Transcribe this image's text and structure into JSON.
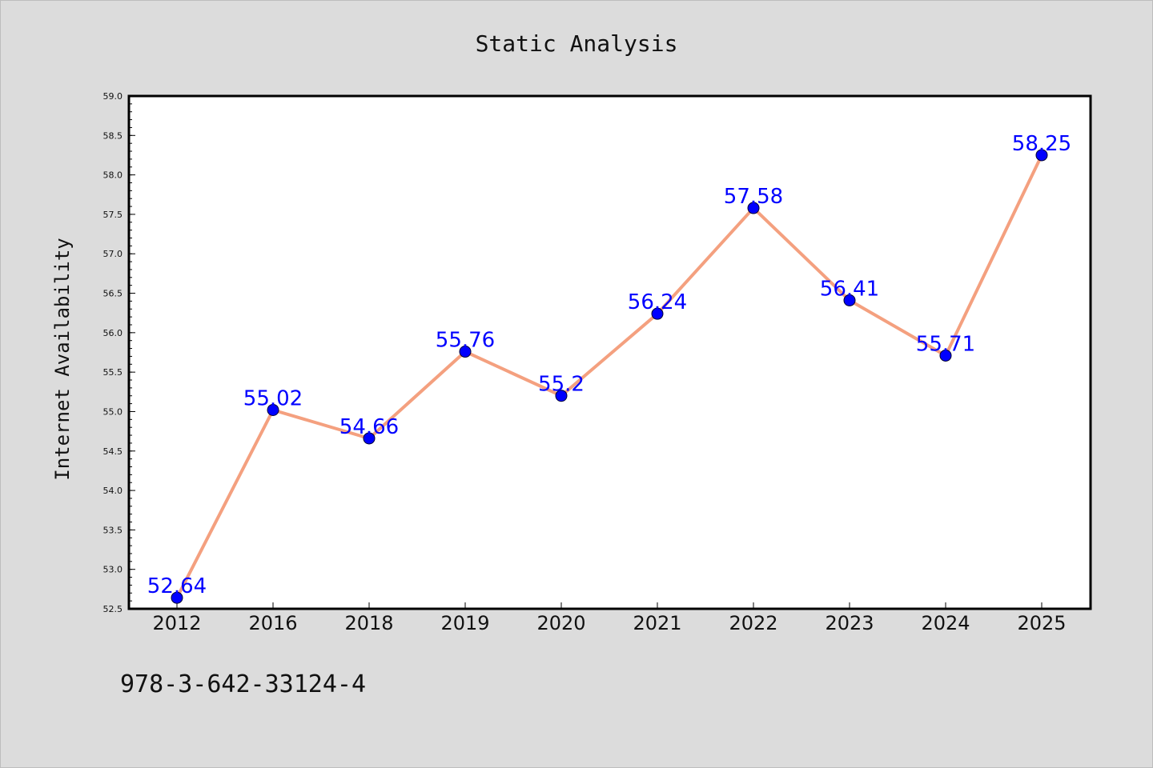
{
  "chart_data": {
    "type": "line",
    "title": "Static Analysis",
    "xlabel": "",
    "ylabel": "Internet Availability",
    "categories": [
      "2012",
      "2016",
      "2018",
      "2019",
      "2020",
      "2021",
      "2022",
      "2023",
      "2024",
      "2025"
    ],
    "series": [
      {
        "values": [
          52.64,
          55.02,
          54.66,
          55.76,
          55.2,
          56.24,
          57.58,
          56.41,
          55.71,
          58.25
        ],
        "labels": [
          "52.64",
          "55.02",
          "54.66",
          "55.76",
          "55.2",
          "56.24",
          "57.58",
          "56.41",
          "55.71",
          "58.25"
        ]
      }
    ],
    "ylim": [
      52.5,
      59.0
    ],
    "yticks": [
      "52.5",
      "53.0",
      "53.5",
      "54.0",
      "54.5",
      "55.0",
      "55.5",
      "56.0",
      "56.5",
      "57.0",
      "57.5",
      "58.0",
      "58.5",
      "59.0"
    ],
    "grid": false,
    "colors": {
      "line": "#f4a07f",
      "marker": "#0000ff",
      "data_label": "#0000ff",
      "plot_background": "#ffffff",
      "figure_background": "#dcdcdc"
    }
  },
  "footer": {
    "isbn": "978-3-642-33124-4"
  }
}
